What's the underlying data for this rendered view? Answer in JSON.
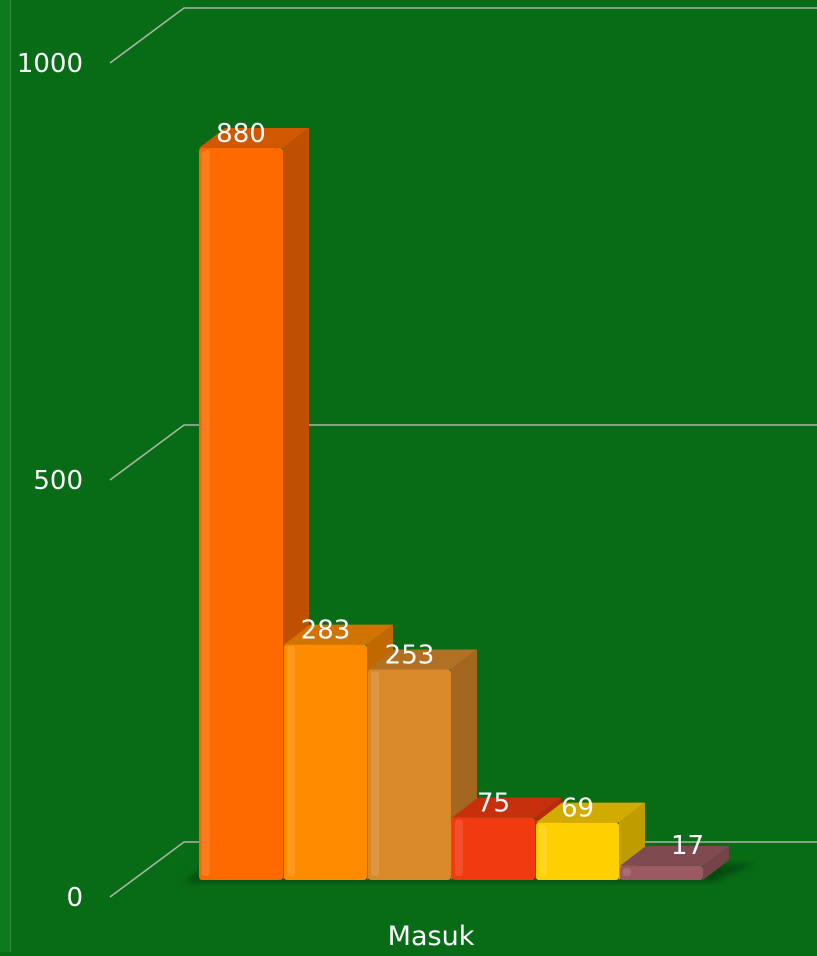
{
  "colors": {
    "background": "#086b16",
    "gridline": "#a8b8a8",
    "text": "#ffffff"
  },
  "chart_data": {
    "type": "bar",
    "categories": [
      "Masuk"
    ],
    "series": [
      {
        "value": 880,
        "color": "#ff6a00"
      },
      {
        "value": 283,
        "color": "#ff8c00"
      },
      {
        "value": 253,
        "color": "#d9892a"
      },
      {
        "value": 75,
        "color": "#f23a10"
      },
      {
        "value": 69,
        "color": "#ffd000"
      },
      {
        "value": 17,
        "color": "#9b5a62"
      }
    ],
    "ylim": [
      0,
      1000
    ],
    "yticks": [
      0,
      500,
      1000
    ],
    "xlabel": "Masuk",
    "grid": true,
    "style": "3d"
  }
}
